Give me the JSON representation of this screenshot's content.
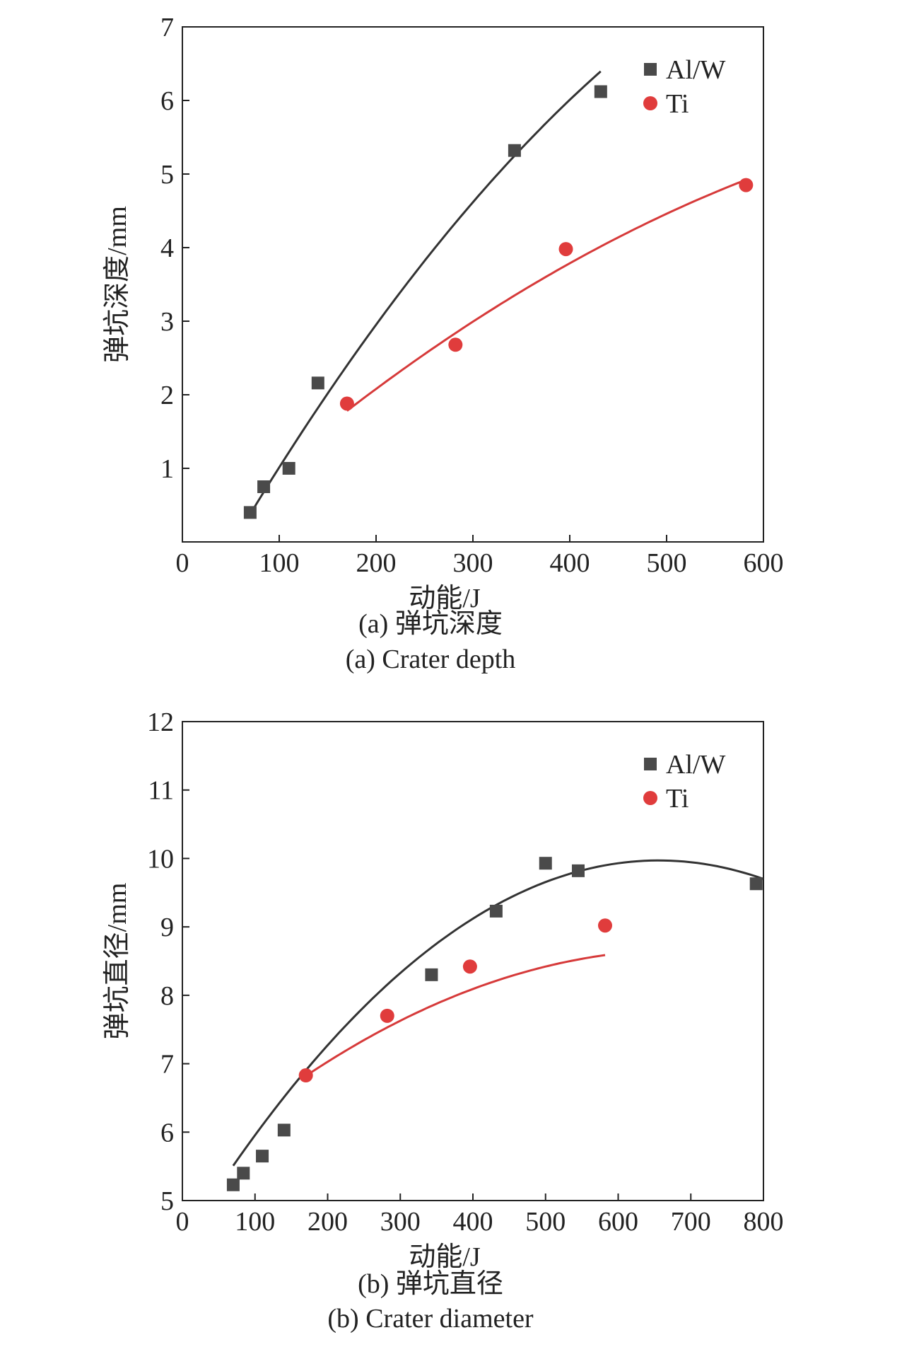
{
  "chart_data": [
    {
      "type": "scatter",
      "xlabel": "动能/J",
      "ylabel": "弹坑深度/mm",
      "xlim": [
        0,
        600
      ],
      "ylim": [
        0,
        7
      ],
      "xticks": [
        0,
        100,
        200,
        300,
        400,
        500,
        600
      ],
      "yticks": [
        1,
        2,
        3,
        4,
        5,
        6,
        7
      ],
      "legend_position": "top-right",
      "series": [
        {
          "name": "Al/W",
          "marker": "square",
          "color": "#4a4a4a",
          "line_color": "#333333",
          "x": [
            70,
            84,
            110,
            140,
            343,
            432
          ],
          "y": [
            0.4,
            0.75,
            1.0,
            2.16,
            5.32,
            6.12
          ],
          "fit_x": [
            70,
            432
          ],
          "fit_coef": [
            -1.2,
            0.0235,
            -1.37e-05
          ]
        },
        {
          "name": "Ti",
          "marker": "circle",
          "color": "#e03c3c",
          "line_color": "#d63a3a",
          "x": [
            170,
            282,
            396,
            582
          ],
          "y": [
            1.88,
            2.68,
            3.98,
            4.85
          ],
          "fit_x": [
            170,
            582
          ],
          "fit_coef": [
            -0.11,
            0.01215,
            -6.02e-06
          ]
        }
      ],
      "caption_cn": "(a) 弹坑深度",
      "caption_en": "(a) Crater depth"
    },
    {
      "type": "scatter",
      "xlabel": "动能/J",
      "ylabel": "弹坑直径/mm",
      "xlim": [
        0,
        800
      ],
      "ylim": [
        5,
        12
      ],
      "xticks": [
        0,
        100,
        200,
        300,
        400,
        500,
        600,
        700,
        800
      ],
      "yticks": [
        5,
        6,
        7,
        8,
        9,
        10,
        11,
        12
      ],
      "legend_position": "top-right",
      "series": [
        {
          "name": "Al/W",
          "marker": "square",
          "color": "#4a4a4a",
          "line_color": "#333333",
          "x": [
            70,
            84,
            110,
            140,
            343,
            432,
            500,
            545,
            790
          ],
          "y": [
            5.23,
            5.4,
            5.65,
            6.03,
            8.3,
            9.23,
            9.93,
            9.82,
            9.63
          ],
          "fit_x": [
            70,
            800
          ],
          "fit_coef": [
            4.38,
            0.01705,
            -1.3e-05
          ]
        },
        {
          "name": "Ti",
          "marker": "circle",
          "color": "#e03c3c",
          "line_color": "#d63a3a",
          "x": [
            170,
            282,
            396,
            582
          ],
          "y": [
            6.83,
            7.7,
            8.42,
            9.02
          ],
          "fit_x": [
            170,
            582
          ],
          "fit_coef": [
            5.42,
            0.0094,
            -6.8e-06
          ]
        }
      ],
      "caption_cn": "(b) 弹坑直径",
      "caption_en": "(b) Crater diameter"
    }
  ]
}
